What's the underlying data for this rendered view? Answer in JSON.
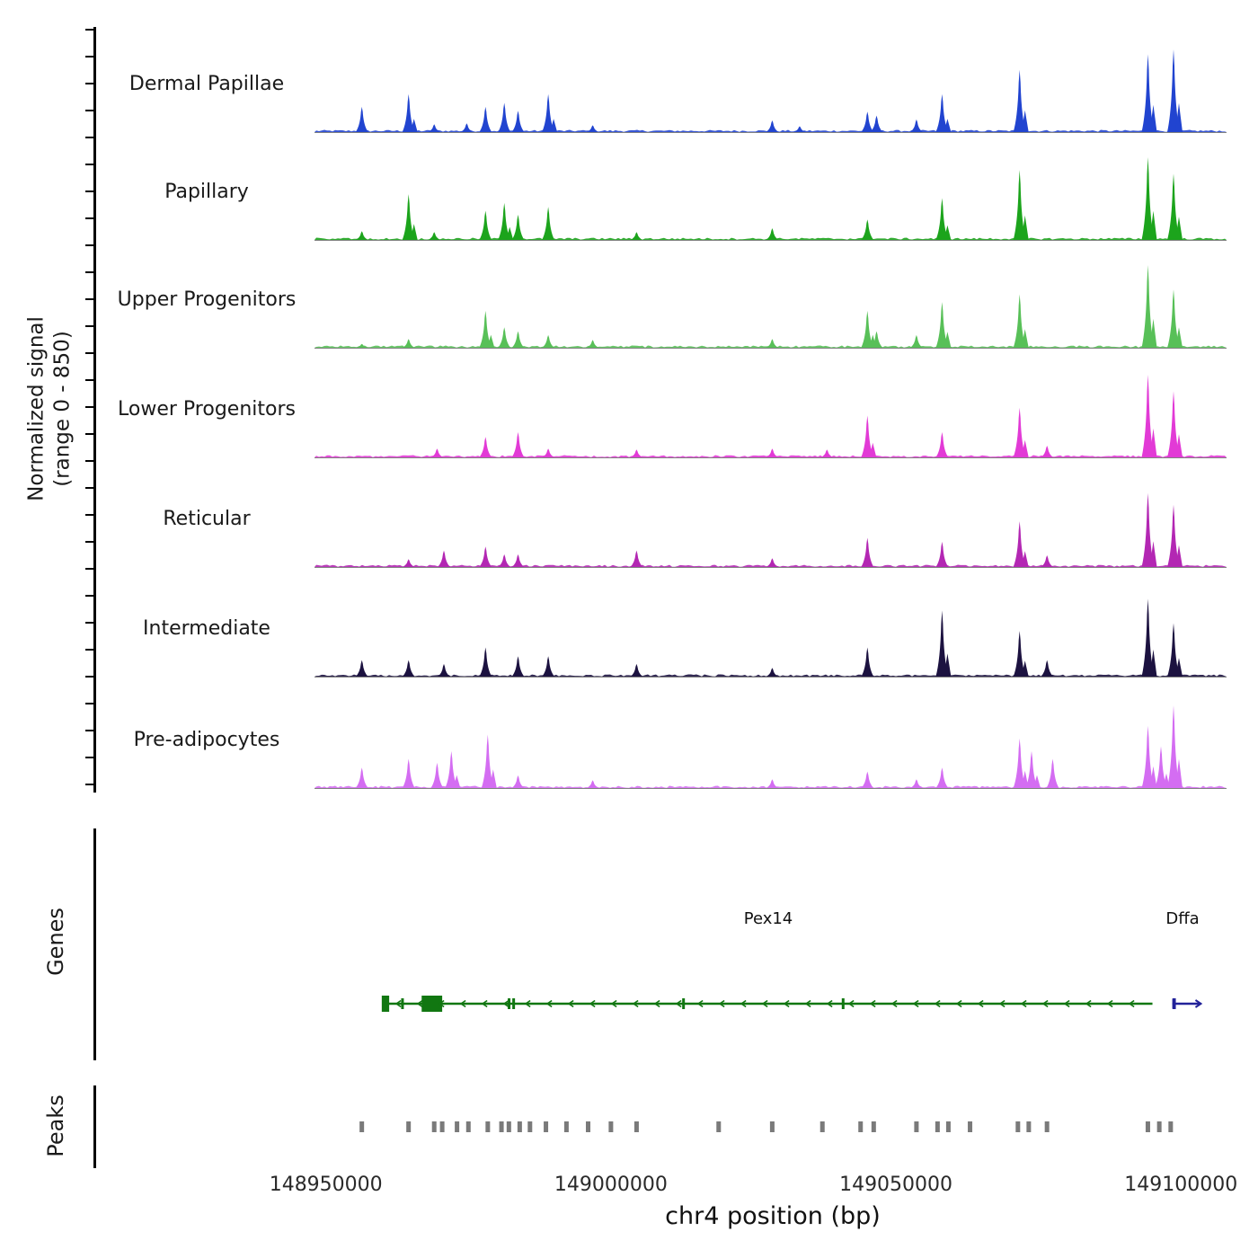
{
  "y_axis": {
    "label_line1": "Normalized signal",
    "label_line2": "(range 0 - 850)"
  },
  "x_axis": {
    "title": "chr4 position (bp)",
    "ticks": [
      "148950000",
      "149000000",
      "149050000",
      "149100000"
    ]
  },
  "sections": {
    "genes_label": "Genes",
    "peaks_label": "Peaks"
  },
  "chart_data": {
    "type": "area",
    "title": "",
    "region": {
      "chrom": "chr4",
      "start": 148948000,
      "end": 149108000
    },
    "signal_range": [
      0,
      850
    ],
    "ylabel": "Normalized signal (range 0 - 850)",
    "xlabel": "chr4 position (bp)",
    "tracks": [
      {
        "name": "Dermal Papillae",
        "color": "#2144d0",
        "peaks": [
          [
            148956300,
            260
          ],
          [
            148964500,
            390
          ],
          [
            148969000,
            80
          ],
          [
            148974700,
            90
          ],
          [
            148978000,
            260
          ],
          [
            148981300,
            300
          ],
          [
            148983700,
            220
          ],
          [
            148989000,
            390
          ],
          [
            148996800,
            70
          ],
          [
            149028300,
            120
          ],
          [
            149033100,
            60
          ],
          [
            149045000,
            210
          ],
          [
            149046600,
            170
          ],
          [
            149053600,
            130
          ],
          [
            149058100,
            390
          ],
          [
            149071700,
            640
          ],
          [
            149094200,
            800
          ],
          [
            149098700,
            850
          ]
        ]
      },
      {
        "name": "Papillary",
        "color": "#1ca41c",
        "peaks": [
          [
            148956300,
            90
          ],
          [
            148964500,
            470
          ],
          [
            148969000,
            80
          ],
          [
            148978000,
            300
          ],
          [
            148981300,
            380
          ],
          [
            148983700,
            260
          ],
          [
            148989000,
            340
          ],
          [
            149004500,
            80
          ],
          [
            149028300,
            120
          ],
          [
            149045000,
            210
          ],
          [
            149058100,
            430
          ],
          [
            149071700,
            720
          ],
          [
            149094200,
            850
          ],
          [
            149098700,
            680
          ]
        ]
      },
      {
        "name": "Upper Progenitors",
        "color": "#58c058",
        "peaks": [
          [
            148956300,
            40
          ],
          [
            148964500,
            90
          ],
          [
            148978000,
            380
          ],
          [
            148981300,
            210
          ],
          [
            148983700,
            170
          ],
          [
            148989000,
            130
          ],
          [
            148996800,
            80
          ],
          [
            149028300,
            90
          ],
          [
            149045000,
            380
          ],
          [
            149046600,
            170
          ],
          [
            149053600,
            130
          ],
          [
            149058100,
            470
          ],
          [
            149071700,
            550
          ],
          [
            149094200,
            850
          ],
          [
            149098700,
            600
          ]
        ]
      },
      {
        "name": "Lower Progenitors",
        "color": "#e23ad6",
        "peaks": [
          [
            148969500,
            90
          ],
          [
            148978000,
            210
          ],
          [
            148983700,
            260
          ],
          [
            148989000,
            90
          ],
          [
            149004500,
            80
          ],
          [
            149028300,
            90
          ],
          [
            149037900,
            80
          ],
          [
            149045000,
            430
          ],
          [
            149058100,
            260
          ],
          [
            149071700,
            510
          ],
          [
            149076500,
            120
          ],
          [
            149094200,
            850
          ],
          [
            149098700,
            680
          ]
        ]
      },
      {
        "name": "Reticular",
        "color": "#b327b3",
        "peaks": [
          [
            148964500,
            80
          ],
          [
            148970700,
            170
          ],
          [
            148978000,
            210
          ],
          [
            148981300,
            130
          ],
          [
            148983700,
            130
          ],
          [
            149004500,
            170
          ],
          [
            149028300,
            90
          ],
          [
            149045000,
            300
          ],
          [
            149058100,
            260
          ],
          [
            149071700,
            470
          ],
          [
            149076500,
            120
          ],
          [
            149094200,
            760
          ],
          [
            149098700,
            640
          ]
        ]
      },
      {
        "name": "Intermediate",
        "color": "#1c1240",
        "peaks": [
          [
            148956300,
            170
          ],
          [
            148964500,
            170
          ],
          [
            148970700,
            130
          ],
          [
            148978000,
            300
          ],
          [
            148983700,
            210
          ],
          [
            148989000,
            210
          ],
          [
            149004500,
            130
          ],
          [
            149028300,
            90
          ],
          [
            149045000,
            300
          ],
          [
            149058100,
            680
          ],
          [
            149071700,
            470
          ],
          [
            149076500,
            170
          ],
          [
            149094200,
            800
          ],
          [
            149098700,
            550
          ]
        ]
      },
      {
        "name": "Pre-adipocytes",
        "color": "#d46df2",
        "peaks": [
          [
            148956300,
            210
          ],
          [
            148964500,
            300
          ],
          [
            148969500,
            260
          ],
          [
            148972000,
            380
          ],
          [
            148978400,
            550
          ],
          [
            148983700,
            130
          ],
          [
            148996800,
            80
          ],
          [
            149028300,
            90
          ],
          [
            149045000,
            170
          ],
          [
            149053600,
            90
          ],
          [
            149058100,
            210
          ],
          [
            149071700,
            510
          ],
          [
            149073800,
            380
          ],
          [
            149077500,
            300
          ],
          [
            149094200,
            640
          ],
          [
            149096500,
            430
          ],
          [
            149098700,
            850
          ]
        ]
      }
    ],
    "genes": [
      {
        "name": "Pex14",
        "color": "#117711",
        "strand": "-",
        "start": 148960000,
        "end": 149095000,
        "exons": [
          [
            148959800,
            148961100
          ],
          [
            148963200,
            148963600
          ],
          [
            148966800,
            148970400
          ],
          [
            148981900,
            148982300
          ],
          [
            148982700,
            148983100
          ],
          [
            149012500,
            149012900
          ],
          [
            149040500,
            149040900
          ]
        ]
      },
      {
        "name": "Dffa",
        "color": "#222299",
        "strand": "+",
        "start": 149098500,
        "end": 149103500,
        "exons": [
          [
            149098500,
            149099100
          ]
        ]
      }
    ],
    "peak_calls": [
      148956300,
      148964500,
      148969000,
      148970400,
      148973000,
      148975000,
      148978400,
      148980800,
      148982100,
      148984000,
      148985800,
      148988600,
      148992200,
      148996000,
      149000000,
      149004500,
      149018900,
      149028300,
      149037100,
      149043800,
      149046100,
      149053600,
      149057300,
      149059200,
      149063000,
      149071400,
      149073300,
      149076500,
      149094200,
      149096200,
      149098200
    ],
    "peak_color": "#7a7a7a"
  }
}
